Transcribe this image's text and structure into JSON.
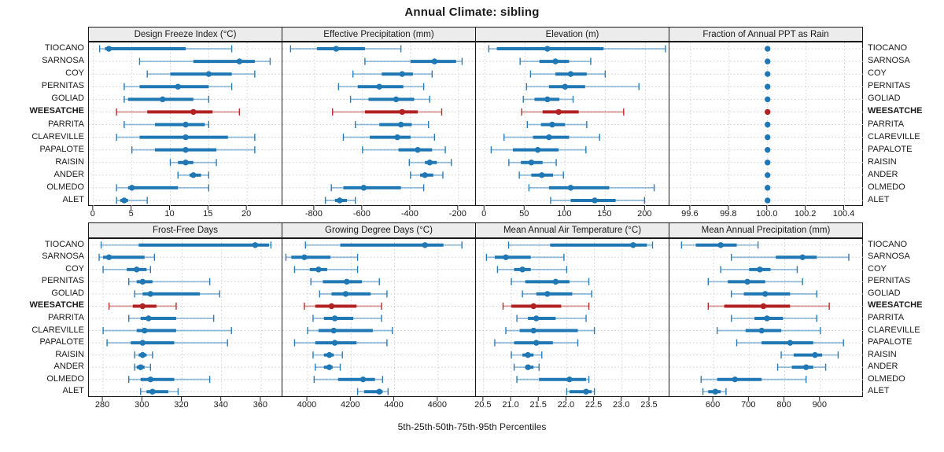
{
  "title": "Annual Climate: sibling",
  "footer": "5th-25th-50th-75th-95th Percentiles",
  "percentile_levels": [
    "5th",
    "25th",
    "50th",
    "75th",
    "95th"
  ],
  "highlight_site": "WEESATCHE",
  "colors": {
    "primary": "#1f77b4",
    "highlight": "#b22222",
    "grid": "#cfcfcf",
    "header_bg": "#ececec",
    "border": "#1a1a1a",
    "text": "#1a1a1a"
  },
  "sites": [
    "TIOCANO",
    "SARNOSA",
    "COY",
    "PERNITAS",
    "GOLIAD",
    "WEESATCHE",
    "PARRITA",
    "CLAREVILLE",
    "PAPALOTE",
    "RAISIN",
    "ANDER",
    "OLMEDO",
    "ALET"
  ],
  "chart_data": [
    {
      "type": "dot-whisker",
      "title": "Design Freeze Index (°C)",
      "row": 0,
      "col": 0,
      "xlim": [
        -0.6,
        24.7
      ],
      "tick_values": [
        0,
        5,
        10,
        15,
        20
      ],
      "tick_labels": [
        "0",
        "5",
        "10",
        "15",
        "20"
      ],
      "series": {
        "TIOCANO": [
          0.8,
          1.5,
          2,
          12,
          18
        ],
        "SARNOSA": [
          6,
          13,
          19,
          21,
          23
        ],
        "COY": [
          7,
          10,
          15,
          18,
          21
        ],
        "PERNITAS": [
          4,
          6,
          11,
          15,
          18
        ],
        "GOLIAD": [
          4,
          4.5,
          9,
          13,
          15
        ],
        "WEESATCHE": [
          3,
          7,
          13,
          15.5,
          19
        ],
        "PARRITA": [
          4,
          8,
          12,
          14.5,
          15
        ],
        "CLAREVILLE": [
          3,
          6,
          12,
          17.5,
          21
        ],
        "PAPALOTE": [
          5,
          8,
          12,
          16,
          21
        ],
        "RAISIN": [
          10,
          11,
          12,
          13,
          16
        ],
        "ANDER": [
          11,
          12.5,
          13,
          14,
          15
        ],
        "OLMEDO": [
          3,
          4.5,
          5,
          11,
          15
        ],
        "ALET": [
          3,
          3.5,
          4,
          4.5,
          7
        ]
      }
    },
    {
      "type": "dot-whisker",
      "title": "Effective Precipitation (mm)",
      "row": 0,
      "col": 1,
      "xlim": [
        -934,
        -124
      ],
      "tick_values": [
        -800,
        -600,
        -400,
        -200
      ],
      "tick_labels": [
        "-800",
        "-600",
        "-400",
        "-200"
      ],
      "series": {
        "TIOCANO": [
          -900,
          -790,
          -710,
          -590,
          -440
        ],
        "SARNOSA": [
          -590,
          -400,
          -300,
          -210,
          -185
        ],
        "COY": [
          -640,
          -520,
          -435,
          -390,
          -310
        ],
        "PERNITAS": [
          -700,
          -620,
          -530,
          -430,
          -345
        ],
        "GOLIAD": [
          -650,
          -575,
          -460,
          -385,
          -320
        ],
        "WEESATCHE": [
          -725,
          -590,
          -435,
          -370,
          -270
        ],
        "PARRITA": [
          -630,
          -530,
          -440,
          -395,
          -325
        ],
        "CLAREVILLE": [
          -680,
          -570,
          -455,
          -400,
          -300
        ],
        "PAPALOTE": [
          -600,
          -450,
          -370,
          -310,
          -255
        ],
        "RAISIN": [
          -405,
          -340,
          -320,
          -290,
          -230
        ],
        "ANDER": [
          -400,
          -360,
          -340,
          -305,
          -265
        ],
        "OLMEDO": [
          -730,
          -680,
          -595,
          -440,
          -345
        ],
        "ALET": [
          -755,
          -715,
          -695,
          -665,
          -630
        ]
      }
    },
    {
      "type": "dot-whisker",
      "title": "Elevation (m)",
      "row": 0,
      "col": 2,
      "xlim": [
        -11,
        231
      ],
      "tick_values": [
        0,
        50,
        100,
        150,
        200
      ],
      "tick_labels": [
        "0",
        "50",
        "100",
        "150",
        "200"
      ],
      "series": {
        "TIOCANO": [
          5,
          15,
          78,
          148,
          225
        ],
        "SARNOSA": [
          44,
          68,
          88,
          105,
          132
        ],
        "COY": [
          57,
          88,
          107,
          127,
          150
        ],
        "PERNITAS": [
          52,
          80,
          100,
          125,
          192
        ],
        "GOLIAD": [
          48,
          62,
          78,
          93,
          110
        ],
        "WEESATCHE": [
          46,
          72,
          92,
          117,
          173
        ],
        "PARRITA": [
          53,
          70,
          84,
          100,
          127
        ],
        "CLAREVILLE": [
          24,
          60,
          80,
          105,
          143
        ],
        "PAPALOTE": [
          8,
          35,
          66,
          92,
          126
        ],
        "RAISIN": [
          30,
          45,
          58,
          72,
          89
        ],
        "ANDER": [
          43,
          58,
          71,
          85,
          98
        ],
        "OLMEDO": [
          55,
          80,
          107,
          155,
          211
        ],
        "ALET": [
          82,
          107,
          137,
          163,
          199
        ]
      }
    },
    {
      "type": "dot-whisker",
      "title": "Fraction of Annual PPT as Rain",
      "row": 0,
      "col": 3,
      "xlim": [
        99.49,
        100.5
      ],
      "tick_values": [
        99.6,
        99.8,
        100.0,
        100.2,
        100.4
      ],
      "tick_labels": [
        "99.6",
        "99.8",
        "100.0",
        "100.2",
        "100.4"
      ],
      "series": {
        "TIOCANO": [
          100,
          100,
          100,
          100,
          100
        ],
        "SARNOSA": [
          100,
          100,
          100,
          100,
          100
        ],
        "COY": [
          100,
          100,
          100,
          100,
          100
        ],
        "PERNITAS": [
          100,
          100,
          100,
          100,
          100
        ],
        "GOLIAD": [
          100,
          100,
          100,
          100,
          100
        ],
        "WEESATCHE": [
          100,
          100,
          100,
          100,
          100
        ],
        "PARRITA": [
          100,
          100,
          100,
          100,
          100
        ],
        "CLAREVILLE": [
          100,
          100,
          100,
          100,
          100
        ],
        "PAPALOTE": [
          100,
          100,
          100,
          100,
          100
        ],
        "RAISIN": [
          100,
          100,
          100,
          100,
          100
        ],
        "ANDER": [
          100,
          100,
          100,
          100,
          100
        ],
        "OLMEDO": [
          100,
          100,
          100,
          100,
          100
        ],
        "ALET": [
          100,
          100,
          100,
          100,
          100
        ]
      }
    },
    {
      "type": "dot-whisker",
      "title": "Frost-Free Days",
      "row": 1,
      "col": 0,
      "xlim": [
        272.8,
        371.2
      ],
      "tick_values": [
        280,
        300,
        320,
        340,
        360
      ],
      "tick_labels": [
        "280",
        "300",
        "320",
        "340",
        "360"
      ],
      "series": {
        "TIOCANO": [
          279,
          298,
          357,
          364,
          365
        ],
        "SARNOSA": [
          278,
          280,
          283,
          301,
          306
        ],
        "COY": [
          280,
          292,
          297,
          302,
          304
        ],
        "PERNITAS": [
          293,
          297,
          300,
          305,
          334
        ],
        "GOLIAD": [
          296,
          300,
          304,
          329,
          339
        ],
        "WEESATCHE": [
          283,
          295,
          300,
          307,
          317
        ],
        "PARRITA": [
          293,
          299,
          303,
          317,
          336
        ],
        "CLAREVILLE": [
          280,
          297,
          301,
          317,
          345
        ],
        "PAPALOTE": [
          282,
          294,
          300,
          316,
          343
        ],
        "RAISIN": [
          296,
          298,
          300,
          302,
          305
        ],
        "ANDER": [
          296,
          297,
          299,
          301,
          304
        ],
        "OLMEDO": [
          293,
          299,
          304,
          316,
          334
        ],
        "ALET": [
          299,
          302,
          305,
          313,
          318
        ]
      }
    },
    {
      "type": "dot-whisker",
      "title": "Growing Degree Days (°C)",
      "row": 1,
      "col": 1,
      "xlim": [
        3884,
        4778
      ],
      "tick_values": [
        4000,
        4200,
        4400,
        4600
      ],
      "tick_labels": [
        "4000",
        "4200",
        "4400",
        "4600"
      ],
      "series": {
        "TIOCANO": [
          3990,
          4150,
          4540,
          4625,
          4710
        ],
        "SARNOSA": [
          3900,
          3925,
          3985,
          4105,
          4230
        ],
        "COY": [
          3940,
          4010,
          4050,
          4090,
          4230
        ],
        "PERNITAS": [
          4015,
          4070,
          4180,
          4250,
          4330
        ],
        "GOLIAD": [
          4055,
          4110,
          4175,
          4290,
          4365
        ],
        "WEESATCHE": [
          3985,
          4035,
          4110,
          4225,
          4340
        ],
        "PARRITA": [
          4025,
          4075,
          4125,
          4210,
          4340
        ],
        "CLAREVILLE": [
          4000,
          4050,
          4120,
          4300,
          4390
        ],
        "PAPALOTE": [
          3940,
          4035,
          4125,
          4225,
          4365
        ],
        "RAISIN": [
          4025,
          4075,
          4100,
          4120,
          4160
        ],
        "ANDER": [
          4035,
          4075,
          4100,
          4115,
          4150
        ],
        "OLMEDO": [
          4030,
          4140,
          4255,
          4310,
          4345
        ],
        "ALET": [
          4230,
          4260,
          4330,
          4345,
          4370
        ]
      }
    },
    {
      "type": "dot-whisker",
      "title": "Mean Annual Air Temperature (°C)",
      "row": 1,
      "col": 2,
      "xlim": [
        20.36,
        23.87
      ],
      "tick_values": [
        20.5,
        21.0,
        21.5,
        22.0,
        22.5,
        23.0,
        23.5
      ],
      "tick_labels": [
        "20.5",
        "21.0",
        "21.5",
        "22.0",
        "22.5",
        "23.0",
        "23.5"
      ],
      "series": {
        "TIOCANO": [
          20.95,
          21.7,
          23.2,
          23.45,
          23.55
        ],
        "SARNOSA": [
          20.55,
          20.7,
          20.9,
          21.35,
          21.95
        ],
        "COY": [
          20.75,
          21.05,
          21.2,
          21.35,
          22.0
        ],
        "PERNITAS": [
          21.0,
          21.25,
          21.8,
          22.05,
          22.4
        ],
        "GOLIAD": [
          21.2,
          21.45,
          21.65,
          22.1,
          22.45
        ],
        "WEESATCHE": [
          20.85,
          21.0,
          21.4,
          21.9,
          22.4
        ],
        "PARRITA": [
          21.1,
          21.3,
          21.45,
          21.8,
          22.35
        ],
        "CLAREVILLE": [
          20.9,
          21.15,
          21.4,
          22.2,
          22.5
        ],
        "PAPALOTE": [
          20.7,
          21.05,
          21.45,
          21.75,
          22.2
        ],
        "RAISIN": [
          21.0,
          21.2,
          21.3,
          21.4,
          21.55
        ],
        "ANDER": [
          21.05,
          21.25,
          21.3,
          21.4,
          21.5
        ],
        "OLMEDO": [
          21.1,
          21.5,
          22.05,
          22.35,
          22.4
        ],
        "ALET": [
          22.0,
          22.05,
          22.35,
          22.45,
          22.5
        ]
      }
    },
    {
      "type": "dot-whisker",
      "title": "Mean Annual Precipitation (mm)",
      "row": 1,
      "col": 3,
      "xlim": [
        476,
        1022
      ],
      "tick_values": [
        600,
        700,
        800,
        900
      ],
      "tick_labels": [
        "600",
        "700",
        "800",
        "900"
      ],
      "series": {
        "TIOCANO": [
          510,
          550,
          620,
          665,
          725
        ],
        "SARNOSA": [
          650,
          775,
          850,
          890,
          980
        ],
        "COY": [
          620,
          700,
          730,
          760,
          835
        ],
        "PERNITAS": [
          585,
          640,
          695,
          745,
          850
        ],
        "GOLIAD": [
          650,
          685,
          745,
          815,
          890
        ],
        "WEESATCHE": [
          585,
          630,
          740,
          815,
          925
        ],
        "PARRITA": [
          650,
          715,
          750,
          795,
          890
        ],
        "CLAREVILLE": [
          610,
          690,
          735,
          790,
          900
        ],
        "PAPALOTE": [
          665,
          735,
          815,
          880,
          965
        ],
        "RAISIN": [
          790,
          825,
          885,
          905,
          950
        ],
        "ANDER": [
          780,
          820,
          860,
          880,
          915
        ],
        "OLMEDO": [
          565,
          610,
          660,
          735,
          860
        ],
        "ALET": [
          570,
          585,
          605,
          620,
          635
        ]
      }
    }
  ]
}
